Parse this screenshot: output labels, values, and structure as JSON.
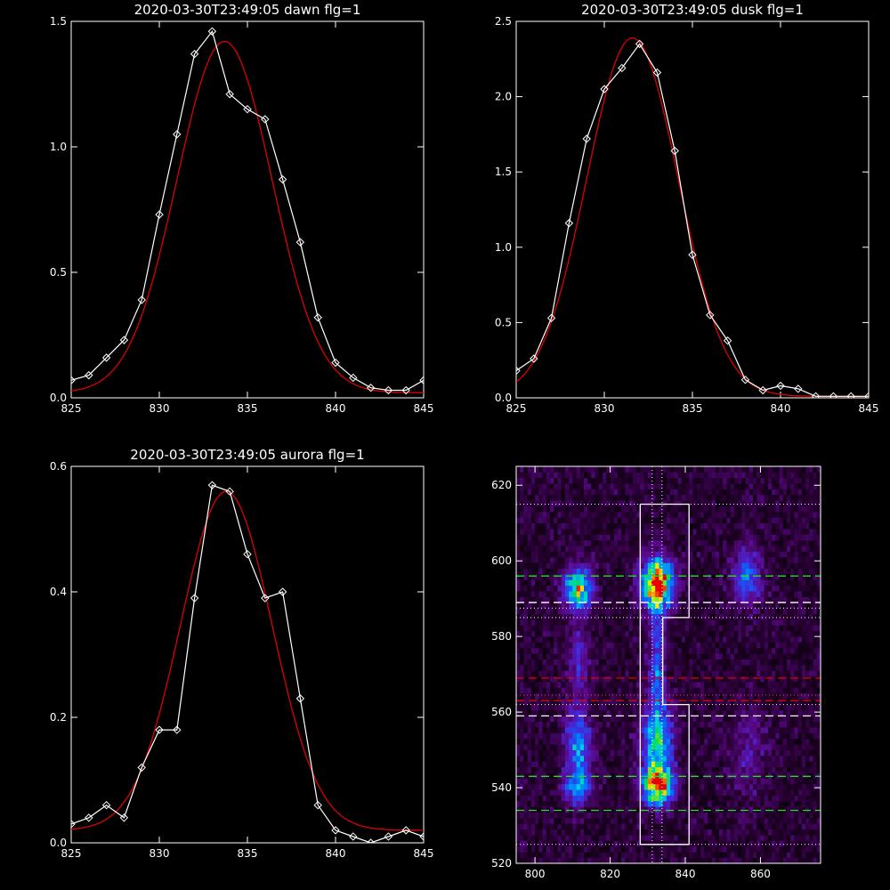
{
  "chart_data": [
    {
      "type": "line",
      "title": "2020-03-30T23:49:05 dawn flg=1",
      "xlim": [
        825,
        845
      ],
      "ylim": [
        0,
        1.5
      ],
      "xticks": [
        "825",
        "830",
        "835",
        "840",
        "845"
      ],
      "yticks": [
        "0.0",
        "0.5",
        "1.0",
        "1.5"
      ],
      "series": [
        {
          "kind": "markers",
          "color": "#ffffff",
          "x": [
            825,
            826,
            827,
            828,
            829,
            830,
            831,
            832,
            833,
            834,
            835,
            836,
            837,
            838,
            839,
            840,
            841,
            842,
            843,
            844,
            845
          ],
          "y": [
            0.07,
            0.09,
            0.16,
            0.23,
            0.39,
            0.73,
            1.05,
            1.37,
            1.46,
            1.21,
            1.15,
            1.11,
            0.87,
            0.62,
            0.32,
            0.14,
            0.08,
            0.04,
            0.03,
            0.03,
            0.07
          ]
        },
        {
          "kind": "fit",
          "color": "#dd0000",
          "amplitude": 1.4,
          "center": 833.7,
          "sigma": 2.7,
          "offset": 0.02
        }
      ]
    },
    {
      "type": "line",
      "title": "2020-03-30T23:49:05 dusk flg=1",
      "xlim": [
        825,
        845
      ],
      "ylim": [
        0,
        2.5
      ],
      "xticks": [
        "825",
        "830",
        "835",
        "840",
        "845"
      ],
      "yticks": [
        "0.0",
        "0.5",
        "1.0",
        "1.5",
        "2.0",
        "2.5"
      ],
      "series": [
        {
          "kind": "markers",
          "color": "#ffffff",
          "x": [
            825,
            826,
            827,
            828,
            829,
            830,
            831,
            832,
            833,
            834,
            835,
            836,
            837,
            838,
            839,
            840,
            841,
            842,
            843,
            844,
            845
          ],
          "y": [
            0.18,
            0.26,
            0.53,
            1.16,
            1.72,
            2.05,
            2.19,
            2.35,
            2.16,
            1.64,
            0.95,
            0.55,
            0.38,
            0.12,
            0.05,
            0.08,
            0.06,
            0.01,
            0.01,
            0.01,
            0.01
          ]
        },
        {
          "kind": "fit",
          "color": "#dd0000",
          "amplitude": 2.38,
          "center": 831.6,
          "sigma": 2.6,
          "offset": 0.01
        }
      ]
    },
    {
      "type": "line",
      "title": "2020-03-30T23:49:05 aurora flg=1",
      "xlim": [
        825,
        845
      ],
      "ylim": [
        0,
        0.6
      ],
      "xticks": [
        "825",
        "830",
        "835",
        "840",
        "845"
      ],
      "yticks": [
        "0.0",
        "0.2",
        "0.4",
        "0.6"
      ],
      "series": [
        {
          "kind": "markers",
          "color": "#ffffff",
          "x": [
            825,
            826,
            827,
            828,
            829,
            830,
            831,
            832,
            833,
            834,
            835,
            836,
            837,
            838,
            839,
            840,
            841,
            842,
            843,
            844,
            845
          ],
          "y": [
            0.03,
            0.04,
            0.06,
            0.04,
            0.12,
            0.18,
            0.18,
            0.39,
            0.57,
            0.56,
            0.46,
            0.39,
            0.4,
            0.23,
            0.06,
            0.02,
            0.01,
            0.0,
            0.01,
            0.02,
            0.01
          ]
        },
        {
          "kind": "fit",
          "color": "#dd0000",
          "amplitude": 0.54,
          "center": 833.8,
          "sigma": 2.6,
          "offset": 0.02
        }
      ]
    },
    {
      "type": "heatmap",
      "xlim": [
        795,
        876
      ],
      "ylim": [
        520,
        625
      ],
      "xticks": [
        "800",
        "820",
        "840",
        "860"
      ],
      "yticks": [
        "520",
        "540",
        "560",
        "580",
        "600",
        "620"
      ],
      "blobs": [
        {
          "x": 811,
          "y": 592,
          "sx": 2.5,
          "sy": 4.0,
          "amp": 0.65
        },
        {
          "x": 811,
          "y": 573,
          "sx": 2.0,
          "sy": 6.0,
          "amp": 0.22
        },
        {
          "x": 811,
          "y": 550,
          "sx": 2.3,
          "sy": 7.0,
          "amp": 0.42
        },
        {
          "x": 811,
          "y": 539,
          "sx": 2.5,
          "sy": 3.0,
          "amp": 0.35
        },
        {
          "x": 832,
          "y": 593,
          "sx": 2.8,
          "sy": 4.5,
          "amp": 1.0
        },
        {
          "x": 832,
          "y": 580,
          "sx": 1.6,
          "sy": 5.0,
          "amp": 0.25
        },
        {
          "x": 832,
          "y": 568,
          "sx": 1.5,
          "sy": 5.0,
          "amp": 0.3
        },
        {
          "x": 832,
          "y": 552,
          "sx": 2.8,
          "sy": 7.0,
          "amp": 0.55
        },
        {
          "x": 832,
          "y": 540,
          "sx": 2.8,
          "sy": 3.5,
          "amp": 0.82
        },
        {
          "x": 856,
          "y": 595,
          "sx": 2.5,
          "sy": 5.0,
          "amp": 0.38
        },
        {
          "x": 856,
          "y": 548,
          "sx": 3.5,
          "sy": 8.0,
          "amp": 0.15
        }
      ],
      "overlays": {
        "box_outline": [
          [
            828,
            615
          ],
          [
            841,
            615
          ],
          [
            841,
            585
          ],
          [
            834,
            585
          ],
          [
            834,
            562
          ],
          [
            841,
            562
          ],
          [
            841,
            525
          ],
          [
            828,
            525
          ],
          [
            828,
            585
          ],
          [
            828,
            615
          ]
        ],
        "white_dotted_x": [
          831.2,
          833.8
        ],
        "white_dotted_y": [
          615,
          585,
          562,
          525,
          587.5
        ],
        "white_dashed_y": [
          589,
          559
        ],
        "green_dashed_y": [
          596,
          543,
          534
        ],
        "red_dashed_y": [
          569,
          563
        ],
        "red_dotted_y": [
          564.5
        ]
      }
    }
  ]
}
